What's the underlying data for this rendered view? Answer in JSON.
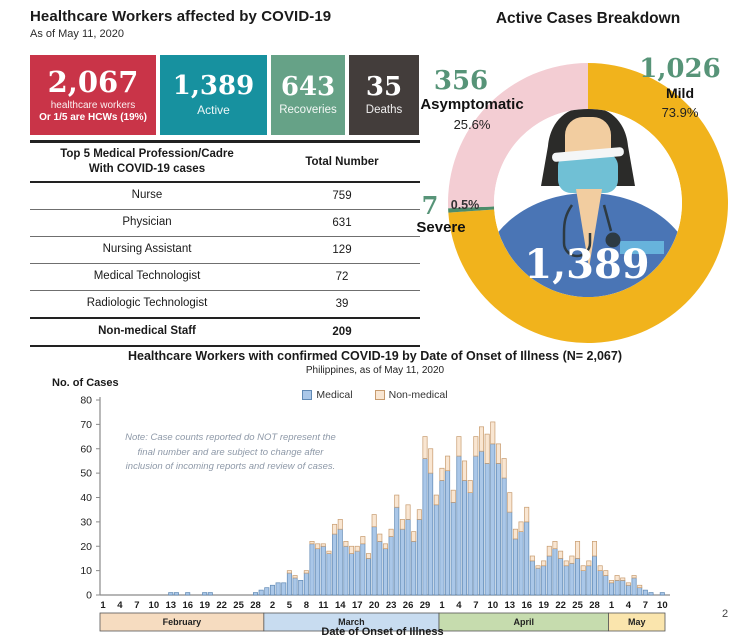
{
  "page_number": "2",
  "left_panel": {
    "title": "Healthcare Workers affected by COVID-19",
    "subtitle": "As of May 11, 2020",
    "cards": [
      {
        "value": "2,067",
        "label": "healthcare workers",
        "sublabel": "Or 1/5 are HCWs (19%)",
        "color": "#c93448"
      },
      {
        "value": "1,389",
        "label": "Active",
        "color": "#17919f"
      },
      {
        "value": "643",
        "label": "Recoveries",
        "color": "#66a287"
      },
      {
        "value": "35",
        "label": "Deaths",
        "color": "#433d3b"
      }
    ]
  },
  "donut_panel": {
    "title": "Active Cases Breakdown",
    "labels": {
      "asymptomatic": {
        "value": "356",
        "name": "Asymptomatic",
        "pct": "25.6%"
      },
      "mild": {
        "value": "1,026",
        "name": "Mild",
        "pct": "73.9%"
      },
      "severe": {
        "value": "7",
        "name": "Severe",
        "pct": "0.5%"
      }
    }
  },
  "chart_data": [
    {
      "type": "pie",
      "title": "Active Cases Breakdown",
      "labels": [
        "Mild",
        "Severe",
        "Asymptomatic"
      ],
      "values": [
        1026,
        7,
        356
      ],
      "percents": [
        73.9,
        0.5,
        25.6
      ],
      "colors": [
        "#f1b31c",
        "#4c8c6a",
        "#f3cdd3"
      ],
      "center_label": "1,389",
      "legend_position": "around"
    },
    {
      "type": "bar",
      "stacked": true,
      "title": "Healthcare Workers with confirmed COVID-19 by Date of Onset of Illness (N= 2,067)",
      "subtitle": "Philippines, as of May 11, 2020",
      "xlabel": "Date of Onset of Illness",
      "ylabel": "No. of Cases",
      "ylim": [
        0,
        80
      ],
      "yticks": [
        0,
        10,
        20,
        30,
        40,
        50,
        60,
        70,
        80
      ],
      "tick_interval": 3,
      "grid": false,
      "legend_position": "top",
      "note": "Note: Case counts reported do NOT represent the final number and are subject to change after inclusion of incoming reports and review of cases.",
      "months": [
        {
          "name": "February",
          "days": 29,
          "color": "#f6dcc0"
        },
        {
          "name": "March",
          "days": 31,
          "color": "#c8dcf0"
        },
        {
          "name": "April",
          "days": 30,
          "color": "#c6dcae"
        },
        {
          "name": "May",
          "days": 10,
          "color": "#fae5ad"
        }
      ],
      "series": [
        {
          "name": "Medical",
          "color": "#aac7e8",
          "border": "#6089b4",
          "values": [
            0,
            0,
            0,
            0,
            0,
            0,
            0,
            0,
            0,
            0,
            0,
            0,
            1,
            1,
            0,
            1,
            0,
            0,
            1,
            1,
            0,
            0,
            0,
            0,
            0,
            0,
            0,
            1,
            2,
            3,
            4,
            5,
            5,
            9,
            7,
            6,
            9,
            21,
            19,
            20,
            17,
            25,
            27,
            20,
            17,
            18,
            21,
            15,
            28,
            22,
            19,
            24,
            36,
            27,
            31,
            22,
            31,
            56,
            50,
            37,
            47,
            51,
            38,
            57,
            47,
            42,
            57,
            59,
            54,
            62,
            54,
            48,
            34,
            23,
            26,
            30,
            14,
            11,
            12,
            16,
            19,
            15,
            12,
            13,
            15,
            10,
            12,
            16,
            10,
            8,
            5,
            6,
            6,
            4,
            7,
            3,
            2,
            1,
            0,
            1
          ]
        },
        {
          "name": "Non-medical",
          "color": "#f9e6d2",
          "border": "#c79b6e",
          "values": [
            0,
            0,
            0,
            0,
            0,
            0,
            0,
            0,
            0,
            0,
            0,
            0,
            0,
            0,
            0,
            0,
            0,
            0,
            0,
            0,
            0,
            0,
            0,
            0,
            0,
            0,
            0,
            0,
            0,
            0,
            0,
            0,
            0,
            1,
            1,
            0,
            1,
            1,
            2,
            1,
            1,
            4,
            4,
            2,
            3,
            2,
            3,
            2,
            5,
            3,
            2,
            3,
            5,
            4,
            6,
            4,
            4,
            9,
            10,
            4,
            5,
            6,
            5,
            8,
            8,
            5,
            8,
            10,
            12,
            9,
            8,
            8,
            8,
            4,
            4,
            6,
            2,
            1,
            2,
            4,
            3,
            3,
            2,
            3,
            7,
            2,
            2,
            6,
            2,
            2,
            1,
            2,
            1,
            1,
            1,
            1,
            0,
            0,
            0,
            0
          ]
        }
      ]
    },
    {
      "type": "table",
      "header_lines": [
        "Top 5 Medical Profession/Cadre",
        "With COVID-19 cases"
      ],
      "columns": [
        "Top 5 Medical Profession/Cadre With COVID-19 cases",
        "Total Number"
      ],
      "rows": [
        {
          "label": "Nurse",
          "value": "759"
        },
        {
          "label": "Physician",
          "value": "631"
        },
        {
          "label": "Nursing Assistant",
          "value": "129"
        },
        {
          "label": "Medical Technologist",
          "value": "72"
        },
        {
          "label": "Radiologic Technologist",
          "value": "39"
        },
        {
          "label": "Non-medical Staff",
          "value": "209",
          "bold": true
        }
      ]
    }
  ]
}
